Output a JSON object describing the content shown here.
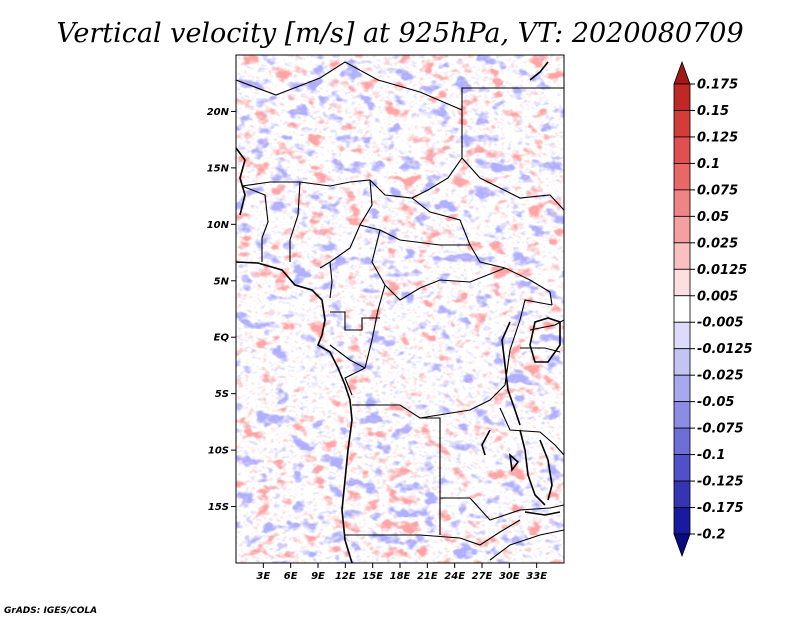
{
  "title": "Vertical velocity [m/s] at 925hPa, VT: 2020080709",
  "credit": "GrADS: IGES/COLA",
  "map": {
    "lon_range": [
      0,
      36
    ],
    "lat_range": [
      -20,
      25
    ],
    "lat_ticks": [
      {
        "value": 20,
        "label": "20N"
      },
      {
        "value": 15,
        "label": "15N"
      },
      {
        "value": 10,
        "label": "10N"
      },
      {
        "value": 5,
        "label": "5N"
      },
      {
        "value": 0,
        "label": "EQ"
      },
      {
        "value": -5,
        "label": "5S"
      },
      {
        "value": -10,
        "label": "10S"
      },
      {
        "value": -15,
        "label": "15S"
      }
    ],
    "lon_ticks": [
      {
        "value": 3,
        "label": "3E"
      },
      {
        "value": 6,
        "label": "6E"
      },
      {
        "value": 9,
        "label": "9E"
      },
      {
        "value": 12,
        "label": "12E"
      },
      {
        "value": 15,
        "label": "15E"
      },
      {
        "value": 18,
        "label": "18E"
      },
      {
        "value": 21,
        "label": "21E"
      },
      {
        "value": 24,
        "label": "24E"
      },
      {
        "value": 27,
        "label": "27E"
      },
      {
        "value": 30,
        "label": "30E"
      },
      {
        "value": 33,
        "label": "33E"
      }
    ]
  },
  "colorbar": {
    "labels": [
      "0.175",
      "0.15",
      "0.125",
      "0.1",
      "0.075",
      "0.05",
      "0.025",
      "0.0125",
      "0.005",
      "-0.005",
      "-0.0125",
      "-0.025",
      "-0.05",
      "-0.075",
      "-0.1",
      "-0.125",
      "-0.175",
      "-0.2"
    ],
    "colors": [
      "#a01818",
      "#c02828",
      "#d43c3c",
      "#e05050",
      "#e86868",
      "#f08484",
      "#f4a0a0",
      "#f8c0c0",
      "#fce0e0",
      "#ffffff",
      "#dcdcf8",
      "#c4c4f4",
      "#a8a8ec",
      "#8c8ce4",
      "#6e6ed8",
      "#5050c8",
      "#3434b4",
      "#1a1aa0",
      "#0a0a82"
    ]
  }
}
